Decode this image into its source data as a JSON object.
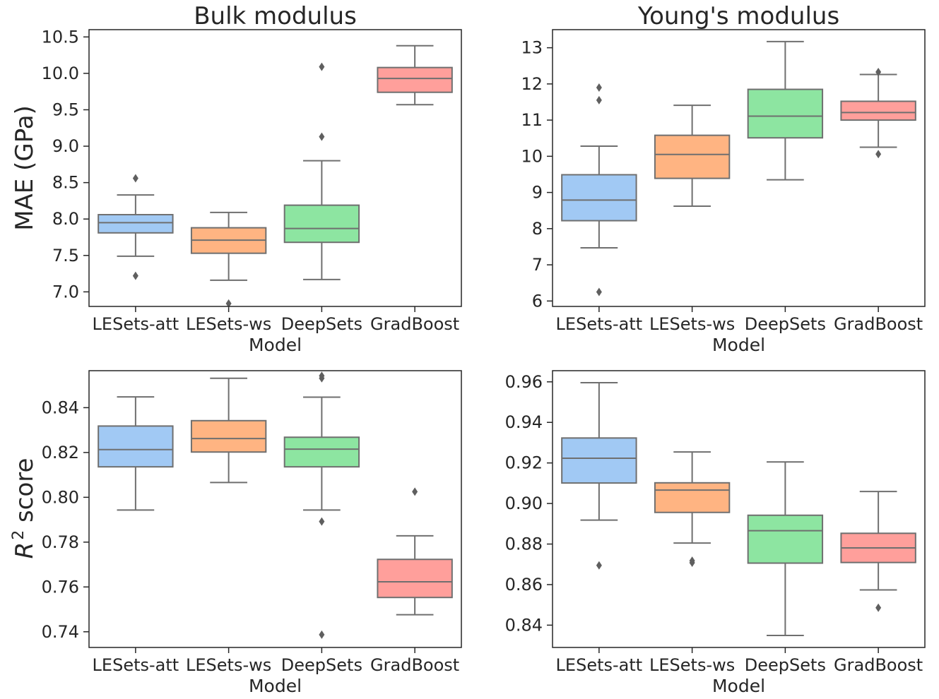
{
  "chart_data": [
    {
      "type": "box",
      "title": "Bulk modulus",
      "xlabel": "Model",
      "ylabel": "MAE (GPa)",
      "ylim": [
        6.8,
        10.6
      ],
      "yticks": [
        "7.0",
        "7.5",
        "8.0",
        "8.5",
        "9.0",
        "9.5",
        "10.0",
        "10.5"
      ],
      "categories": [
        "LESets-att",
        "LESets-ws",
        "DeepSets",
        "GradBoost"
      ],
      "boxes": [
        {
          "category": "LESets-att",
          "q1": 7.81,
          "median": 7.95,
          "q3": 8.06,
          "whislo": 7.49,
          "whishi": 8.33,
          "outliers": [
            8.56,
            7.22
          ]
        },
        {
          "category": "LESets-ws",
          "q1": 7.53,
          "median": 7.71,
          "q3": 7.88,
          "whislo": 7.16,
          "whishi": 8.09,
          "outliers": [
            6.84
          ]
        },
        {
          "category": "DeepSets",
          "q1": 7.68,
          "median": 7.87,
          "q3": 8.19,
          "whislo": 7.17,
          "whishi": 8.8,
          "outliers": [
            10.09,
            9.13
          ]
        },
        {
          "category": "GradBoost",
          "q1": 9.74,
          "median": 9.93,
          "q3": 10.08,
          "whislo": 9.57,
          "whishi": 10.38,
          "outliers": []
        }
      ]
    },
    {
      "type": "box",
      "title": "Young's modulus",
      "xlabel": "Model",
      "ylabel": "",
      "ylim": [
        5.85,
        13.5
      ],
      "yticks": [
        "6",
        "7",
        "8",
        "9",
        "10",
        "11",
        "12",
        "13"
      ],
      "categories": [
        "LESets-att",
        "LESets-ws",
        "DeepSets",
        "GradBoost"
      ],
      "boxes": [
        {
          "category": "LESets-att",
          "q1": 8.22,
          "median": 8.79,
          "q3": 9.49,
          "whislo": 7.47,
          "whishi": 10.28,
          "outliers": [
            11.9,
            11.55,
            6.25
          ]
        },
        {
          "category": "LESets-ws",
          "q1": 9.39,
          "median": 10.05,
          "q3": 10.58,
          "whislo": 8.62,
          "whishi": 11.41,
          "outliers": []
        },
        {
          "category": "DeepSets",
          "q1": 10.51,
          "median": 11.11,
          "q3": 11.85,
          "whislo": 9.35,
          "whishi": 13.17,
          "outliers": []
        },
        {
          "category": "GradBoost",
          "q1": 11.0,
          "median": 11.21,
          "q3": 11.52,
          "whislo": 10.25,
          "whishi": 12.26,
          "outliers": [
            12.33,
            10.06
          ]
        }
      ]
    },
    {
      "type": "box",
      "title": "",
      "xlabel": "Model",
      "ylabel": "R² score",
      "ylim": [
        0.733,
        0.8565
      ],
      "yticks": [
        "0.74",
        "0.76",
        "0.78",
        "0.80",
        "0.82",
        "0.84"
      ],
      "categories": [
        "LESets-att",
        "LESets-ws",
        "DeepSets",
        "GradBoost"
      ],
      "boxes": [
        {
          "category": "LESets-att",
          "q1": 0.8136,
          "median": 0.8213,
          "q3": 0.8318,
          "whislo": 0.7943,
          "whishi": 0.8448,
          "outliers": []
        },
        {
          "category": "LESets-ws",
          "q1": 0.8202,
          "median": 0.8262,
          "q3": 0.8342,
          "whislo": 0.8066,
          "whishi": 0.8531,
          "outliers": []
        },
        {
          "category": "DeepSets",
          "q1": 0.8136,
          "median": 0.8215,
          "q3": 0.8268,
          "whislo": 0.7943,
          "whishi": 0.8447,
          "outliers": [
            0.8542,
            0.8531,
            0.7892,
            0.7387
          ]
        },
        {
          "category": "GradBoost",
          "q1": 0.7553,
          "median": 0.7623,
          "q3": 0.7723,
          "whislo": 0.7476,
          "whishi": 0.7828,
          "outliers": [
            0.8025
          ]
        }
      ]
    },
    {
      "type": "box",
      "title": "",
      "xlabel": "Model",
      "ylabel": "",
      "ylim": [
        0.829,
        0.9655
      ],
      "yticks": [
        "0.84",
        "0.86",
        "0.88",
        "0.90",
        "0.92",
        "0.94",
        "0.96"
      ],
      "categories": [
        "LESets-att",
        "LESets-ws",
        "DeepSets",
        "GradBoost"
      ],
      "boxes": [
        {
          "category": "LESets-att",
          "q1": 0.9101,
          "median": 0.9223,
          "q3": 0.9323,
          "whislo": 0.8918,
          "whishi": 0.9596,
          "outliers": [
            0.8695
          ]
        },
        {
          "category": "LESets-ws",
          "q1": 0.8956,
          "median": 0.9066,
          "q3": 0.9102,
          "whislo": 0.8805,
          "whishi": 0.9254,
          "outliers": [
            0.8718,
            0.8708
          ]
        },
        {
          "category": "DeepSets",
          "q1": 0.8706,
          "median": 0.8866,
          "q3": 0.8942,
          "whislo": 0.8349,
          "whishi": 0.9205,
          "outliers": []
        },
        {
          "category": "GradBoost",
          "q1": 0.8709,
          "median": 0.8781,
          "q3": 0.8853,
          "whislo": 0.8574,
          "whishi": 0.9059,
          "outliers": [
            0.8486
          ]
        }
      ]
    }
  ],
  "colors": {
    "box_fills": [
      "#a1c9f4",
      "#ffb482",
      "#8de5a1",
      "#ff9f9b"
    ],
    "line": "#6f6f6f",
    "outlier": "#5f5f5f",
    "axis": "#262626"
  }
}
